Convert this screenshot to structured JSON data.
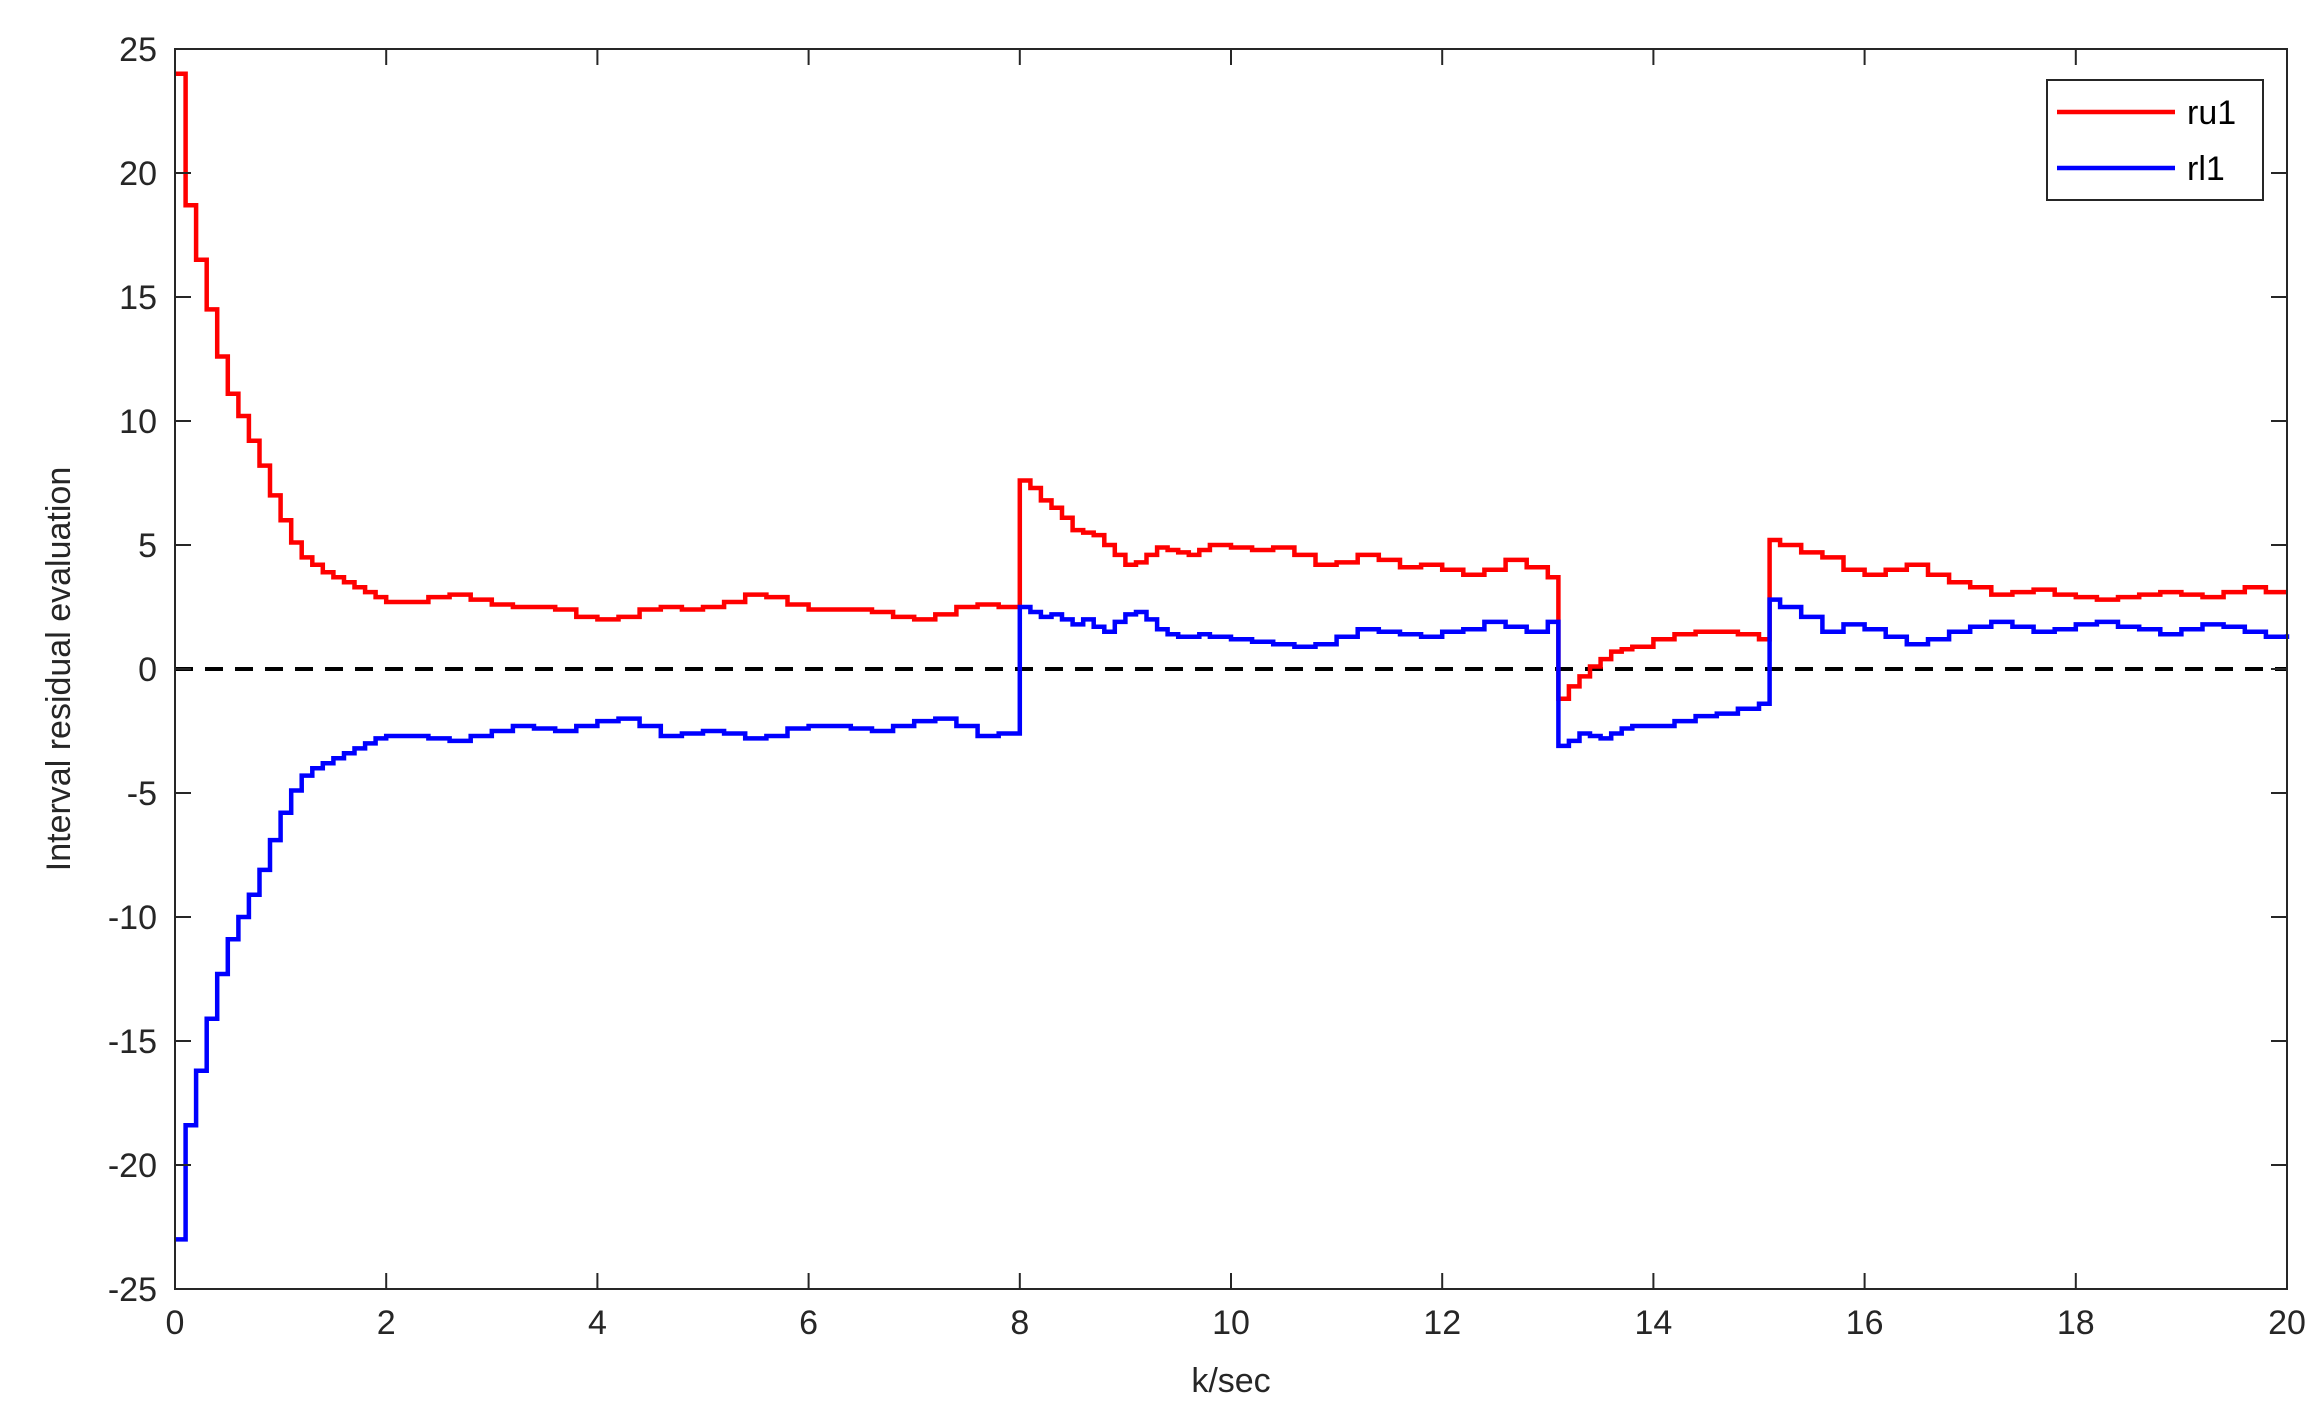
{
  "chart_data": {
    "type": "line",
    "xlabel": "k/sec",
    "ylabel": "Interval residual evaluation",
    "xlim": [
      0,
      20
    ],
    "ylim": [
      -25,
      25
    ],
    "xticks": [
      "0",
      "2",
      "4",
      "6",
      "8",
      "10",
      "12",
      "14",
      "16",
      "18",
      "20"
    ],
    "yticks": [
      "-25",
      "-20",
      "-15",
      "-10",
      "-5",
      "0",
      "5",
      "10",
      "15",
      "20",
      "25"
    ],
    "grid": false,
    "legend_position": "top-right",
    "reference_line": {
      "y": 0,
      "style": "dashed",
      "color": "#000000"
    },
    "series": [
      {
        "name": "ru1",
        "color": "#ff0000",
        "step": true,
        "x": [
          0,
          0.1,
          0.2,
          0.3,
          0.4,
          0.5,
          0.6,
          0.7,
          0.8,
          0.9,
          1.0,
          1.1,
          1.2,
          1.3,
          1.4,
          1.5,
          1.6,
          1.7,
          1.8,
          1.9,
          2.0,
          2.2,
          2.4,
          2.6,
          2.8,
          3.0,
          3.2,
          3.4,
          3.6,
          3.8,
          4.0,
          4.2,
          4.4,
          4.6,
          4.8,
          5.0,
          5.2,
          5.4,
          5.6,
          5.8,
          6.0,
          6.2,
          6.4,
          6.6,
          6.8,
          7.0,
          7.2,
          7.4,
          7.6,
          7.8,
          8.0,
          8.1,
          8.2,
          8.3,
          8.4,
          8.5,
          8.6,
          8.7,
          8.8,
          8.9,
          9.0,
          9.1,
          9.2,
          9.3,
          9.4,
          9.5,
          9.6,
          9.7,
          9.8,
          10.0,
          10.2,
          10.4,
          10.6,
          10.8,
          11.0,
          11.2,
          11.4,
          11.6,
          11.8,
          12.0,
          12.2,
          12.4,
          12.6,
          12.8,
          13.0,
          13.1,
          13.2,
          13.3,
          13.4,
          13.5,
          13.6,
          13.7,
          13.8,
          14.0,
          14.2,
          14.4,
          14.6,
          14.8,
          15.0,
          15.1,
          15.2,
          15.4,
          15.6,
          15.8,
          16.0,
          16.2,
          16.4,
          16.6,
          16.8,
          17.0,
          17.2,
          17.4,
          17.6,
          17.8,
          18.0,
          18.2,
          18.4,
          18.6,
          18.8,
          19.0,
          19.2,
          19.4,
          19.6,
          19.8,
          20.0
        ],
        "y": [
          24.0,
          18.7,
          16.5,
          14.5,
          12.6,
          11.1,
          10.2,
          9.2,
          8.2,
          7.0,
          6.0,
          5.1,
          4.5,
          4.2,
          3.9,
          3.7,
          3.5,
          3.3,
          3.1,
          2.9,
          2.7,
          2.7,
          2.9,
          3.0,
          2.8,
          2.6,
          2.5,
          2.5,
          2.4,
          2.1,
          2.0,
          2.1,
          2.4,
          2.5,
          2.4,
          2.5,
          2.7,
          3.0,
          2.9,
          2.6,
          2.4,
          2.4,
          2.4,
          2.3,
          2.1,
          2.0,
          2.2,
          2.5,
          2.6,
          2.5,
          7.6,
          7.3,
          6.8,
          6.5,
          6.1,
          5.6,
          5.5,
          5.4,
          5.0,
          4.6,
          4.2,
          4.3,
          4.6,
          4.9,
          4.8,
          4.7,
          4.6,
          4.8,
          5.0,
          4.9,
          4.8,
          4.9,
          4.6,
          4.2,
          4.3,
          4.6,
          4.4,
          4.1,
          4.2,
          4.0,
          3.8,
          4.0,
          4.4,
          4.1,
          3.7,
          -1.2,
          -0.7,
          -0.3,
          0.1,
          0.4,
          0.7,
          0.8,
          0.9,
          1.2,
          1.4,
          1.5,
          1.5,
          1.4,
          1.2,
          5.2,
          5.0,
          4.7,
          4.5,
          4.0,
          3.8,
          4.0,
          4.2,
          3.8,
          3.5,
          3.3,
          3.0,
          3.1,
          3.2,
          3.0,
          2.9,
          2.8,
          2.9,
          3.0,
          3.1,
          3.0,
          2.9,
          3.1,
          3.3,
          3.1,
          3.1
        ]
      },
      {
        "name": "rl1",
        "color": "#0000ff",
        "step": true,
        "x": [
          0,
          0.1,
          0.2,
          0.3,
          0.4,
          0.5,
          0.6,
          0.7,
          0.8,
          0.9,
          1.0,
          1.1,
          1.2,
          1.3,
          1.4,
          1.5,
          1.6,
          1.7,
          1.8,
          1.9,
          2.0,
          2.2,
          2.4,
          2.6,
          2.8,
          3.0,
          3.2,
          3.4,
          3.6,
          3.8,
          4.0,
          4.2,
          4.4,
          4.6,
          4.8,
          5.0,
          5.2,
          5.4,
          5.6,
          5.8,
          6.0,
          6.2,
          6.4,
          6.6,
          6.8,
          7.0,
          7.2,
          7.4,
          7.6,
          7.8,
          8.0,
          8.1,
          8.2,
          8.3,
          8.4,
          8.5,
          8.6,
          8.7,
          8.8,
          8.9,
          9.0,
          9.1,
          9.2,
          9.3,
          9.4,
          9.5,
          9.6,
          9.7,
          9.8,
          10.0,
          10.2,
          10.4,
          10.6,
          10.8,
          11.0,
          11.2,
          11.4,
          11.6,
          11.8,
          12.0,
          12.2,
          12.4,
          12.6,
          12.8,
          13.0,
          13.1,
          13.2,
          13.3,
          13.4,
          13.5,
          13.6,
          13.7,
          13.8,
          14.0,
          14.2,
          14.4,
          14.6,
          14.8,
          15.0,
          15.1,
          15.2,
          15.4,
          15.6,
          15.8,
          16.0,
          16.2,
          16.4,
          16.6,
          16.8,
          17.0,
          17.2,
          17.4,
          17.6,
          17.8,
          18.0,
          18.2,
          18.4,
          18.6,
          18.8,
          19.0,
          19.2,
          19.4,
          19.6,
          19.8,
          20.0
        ],
        "y": [
          -23.0,
          -18.4,
          -16.2,
          -14.1,
          -12.3,
          -10.9,
          -10.0,
          -9.1,
          -8.1,
          -6.9,
          -5.8,
          -4.9,
          -4.3,
          -4.0,
          -3.8,
          -3.6,
          -3.4,
          -3.2,
          -3.0,
          -2.8,
          -2.7,
          -2.7,
          -2.8,
          -2.9,
          -2.7,
          -2.5,
          -2.3,
          -2.4,
          -2.5,
          -2.3,
          -2.1,
          -2.0,
          -2.3,
          -2.7,
          -2.6,
          -2.5,
          -2.6,
          -2.8,
          -2.7,
          -2.4,
          -2.3,
          -2.3,
          -2.4,
          -2.5,
          -2.3,
          -2.1,
          -2.0,
          -2.3,
          -2.7,
          -2.6,
          2.5,
          2.3,
          2.1,
          2.2,
          2.0,
          1.8,
          2.0,
          1.7,
          1.5,
          1.9,
          2.2,
          2.3,
          2.0,
          1.6,
          1.4,
          1.3,
          1.3,
          1.4,
          1.3,
          1.2,
          1.1,
          1.0,
          0.9,
          1.0,
          1.3,
          1.6,
          1.5,
          1.4,
          1.3,
          1.5,
          1.6,
          1.9,
          1.7,
          1.5,
          1.9,
          -3.1,
          -2.9,
          -2.6,
          -2.7,
          -2.8,
          -2.6,
          -2.4,
          -2.3,
          -2.3,
          -2.1,
          -1.9,
          -1.8,
          -1.6,
          -1.4,
          2.8,
          2.5,
          2.1,
          1.5,
          1.8,
          1.6,
          1.3,
          1.0,
          1.2,
          1.5,
          1.7,
          1.9,
          1.7,
          1.5,
          1.6,
          1.8,
          1.9,
          1.7,
          1.6,
          1.4,
          1.6,
          1.8,
          1.7,
          1.5,
          1.3,
          1.4
        ]
      }
    ]
  }
}
